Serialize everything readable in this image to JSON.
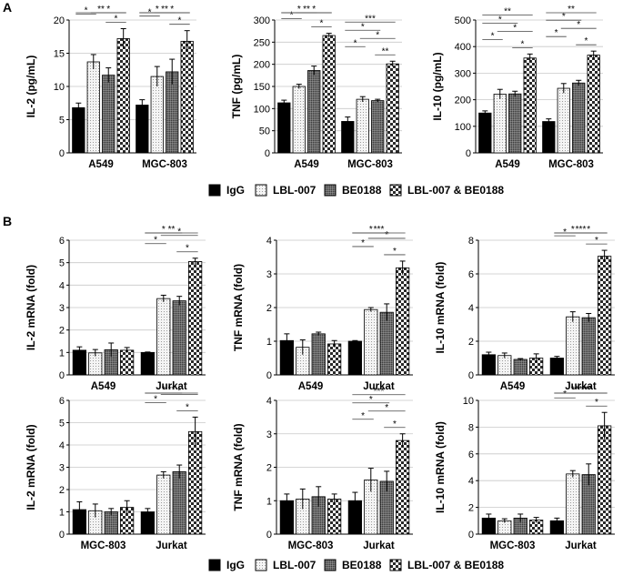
{
  "figure": {
    "panel_a_label": "A",
    "panel_b_label": "B"
  },
  "legend": {
    "items": [
      {
        "label": "IgG",
        "fill": "solid"
      },
      {
        "label": "LBL-007",
        "fill": "dots"
      },
      {
        "label": "BE0188",
        "fill": "dense"
      },
      {
        "label": "LBL-007 & BE0188",
        "fill": "check"
      }
    ]
  },
  "colors": {
    "igg": "#000000",
    "line": "#000000",
    "grid": "#c8c8c8",
    "sig_line": "#444444"
  },
  "chart_data": [
    {
      "id": "a-il2",
      "type": "bar",
      "title": "",
      "ylabel": "IL-2  (pg/mL)",
      "ylim": [
        0,
        20
      ],
      "yticks": [
        0,
        5,
        10,
        15,
        20
      ],
      "categories": [
        "A549",
        "MGC-803"
      ],
      "series": [
        {
          "name": "IgG",
          "values": [
            6.8,
            7.2
          ],
          "errors": [
            0.7,
            0.8
          ]
        },
        {
          "name": "LBL-007",
          "values": [
            13.7,
            11.5
          ],
          "errors": [
            1.1,
            1.5
          ]
        },
        {
          "name": "BE0188",
          "values": [
            11.7,
            12.2
          ],
          "errors": [
            1.1,
            1.9
          ]
        },
        {
          "name": "LBL-007 & BE0188",
          "values": [
            17.2,
            16.8
          ],
          "errors": [
            1.5,
            1.6
          ]
        }
      ],
      "significance": [
        {
          "group": 0,
          "from": 0,
          "to": 3,
          "label": "**"
        },
        {
          "group": 0,
          "from": 1,
          "to": 3,
          "label": "*"
        },
        {
          "group": 0,
          "from": 2,
          "to": 3,
          "label": "*"
        },
        {
          "group": 0,
          "from": 0,
          "to": 1,
          "label": "*"
        },
        {
          "group": 1,
          "from": 0,
          "to": 3,
          "label": "**"
        },
        {
          "group": 1,
          "from": 1,
          "to": 3,
          "label": "*"
        },
        {
          "group": 1,
          "from": 2,
          "to": 3,
          "label": "*"
        },
        {
          "group": 1,
          "from": 0,
          "to": 1,
          "label": "*"
        },
        {
          "group": 1,
          "from": 0,
          "to": 2,
          "label": "*"
        }
      ]
    },
    {
      "id": "a-tnf",
      "type": "bar",
      "title": "",
      "ylabel": "TNF  (pg/mL)",
      "ylim": [
        0,
        300
      ],
      "yticks": [
        0,
        50,
        100,
        150,
        200,
        250,
        300
      ],
      "categories": [
        "A549",
        "MGC-803"
      ],
      "series": [
        {
          "name": "IgG",
          "values": [
            113,
            71
          ],
          "errors": [
            6,
            10
          ]
        },
        {
          "name": "LBL-007",
          "values": [
            150,
            121
          ],
          "errors": [
            5,
            6
          ]
        },
        {
          "name": "BE0188",
          "values": [
            186,
            118
          ],
          "errors": [
            10,
            3
          ]
        },
        {
          "name": "LBL-007 & BE0188",
          "values": [
            265,
            201
          ],
          "errors": [
            5,
            6
          ]
        }
      ],
      "significance": [
        {
          "group": 0,
          "from": 0,
          "to": 3,
          "label": "**"
        },
        {
          "group": 0,
          "from": 1,
          "to": 3,
          "label": "*"
        },
        {
          "group": 0,
          "from": 2,
          "to": 3,
          "label": "*"
        },
        {
          "group": 0,
          "from": 0,
          "to": 2,
          "label": "*"
        },
        {
          "group": 0,
          "from": 0,
          "to": 1,
          "label": "*"
        },
        {
          "group": 1,
          "from": 0,
          "to": 3,
          "label": "***"
        },
        {
          "group": 1,
          "from": 1,
          "to": 3,
          "label": "*"
        },
        {
          "group": 1,
          "from": 2,
          "to": 3,
          "label": "**"
        },
        {
          "group": 1,
          "from": 0,
          "to": 2,
          "label": "*"
        },
        {
          "group": 1,
          "from": 0,
          "to": 1,
          "label": "*"
        }
      ]
    },
    {
      "id": "a-il10",
      "type": "bar",
      "title": "",
      "ylabel": "IL-10  (pg/mL)",
      "ylim": [
        0,
        500
      ],
      "yticks": [
        0,
        100,
        200,
        300,
        400,
        500
      ],
      "categories": [
        "A549",
        "MGC-803"
      ],
      "series": [
        {
          "name": "IgG",
          "values": [
            150,
            118
          ],
          "errors": [
            8,
            10
          ]
        },
        {
          "name": "LBL-007",
          "values": [
            221,
            243
          ],
          "errors": [
            18,
            18
          ]
        },
        {
          "name": "BE0188",
          "values": [
            222,
            263
          ],
          "errors": [
            10,
            10
          ]
        },
        {
          "name": "LBL-007 & BE0188",
          "values": [
            357,
            368
          ],
          "errors": [
            15,
            15
          ]
        }
      ],
      "significance": [
        {
          "group": 0,
          "from": 0,
          "to": 3,
          "label": "**"
        },
        {
          "group": 0,
          "from": 1,
          "to": 3,
          "label": "*"
        },
        {
          "group": 0,
          "from": 2,
          "to": 3,
          "label": "*"
        },
        {
          "group": 0,
          "from": 0,
          "to": 2,
          "label": "*"
        },
        {
          "group": 0,
          "from": 0,
          "to": 1,
          "label": "*"
        },
        {
          "group": 1,
          "from": 0,
          "to": 3,
          "label": "**"
        },
        {
          "group": 1,
          "from": 1,
          "to": 3,
          "label": "*"
        },
        {
          "group": 1,
          "from": 2,
          "to": 3,
          "label": "*"
        },
        {
          "group": 1,
          "from": 0,
          "to": 2,
          "label": "*"
        },
        {
          "group": 1,
          "from": 0,
          "to": 1,
          "label": "*"
        }
      ]
    },
    {
      "id": "b1-il2",
      "type": "bar",
      "title": "",
      "ylabel": "IL-2  mRNA (fold)",
      "ylim": [
        0,
        6
      ],
      "yticks": [
        0,
        1,
        2,
        3,
        4,
        5,
        6
      ],
      "categories": [
        "A549",
        "Jurkat"
      ],
      "series": [
        {
          "name": "IgG",
          "values": [
            1.1,
            1.0
          ],
          "errors": [
            0.15,
            0.02
          ]
        },
        {
          "name": "LBL-007",
          "values": [
            0.98,
            3.4
          ],
          "errors": [
            0.15,
            0.15
          ]
        },
        {
          "name": "BE0188",
          "values": [
            1.12,
            3.3
          ],
          "errors": [
            0.3,
            0.2
          ]
        },
        {
          "name": "LBL-007 & BE0188",
          "values": [
            1.1,
            5.05
          ],
          "errors": [
            0.12,
            0.15
          ]
        }
      ],
      "significance": [
        {
          "group": 1,
          "from": 0,
          "to": 3,
          "label": "**"
        },
        {
          "group": 1,
          "from": 1,
          "to": 3,
          "label": "*"
        },
        {
          "group": 1,
          "from": 2,
          "to": 3,
          "label": "*"
        },
        {
          "group": 1,
          "from": 0,
          "to": 2,
          "label": "*"
        },
        {
          "group": 1,
          "from": 0,
          "to": 1,
          "label": "*"
        }
      ]
    },
    {
      "id": "b1-tnf",
      "type": "bar",
      "title": "",
      "ylabel": "TNF mRNA (fold)",
      "ylim": [
        0,
        4
      ],
      "yticks": [
        0,
        1,
        2,
        3,
        4
      ],
      "categories": [
        "A549",
        "Jurkat"
      ],
      "series": [
        {
          "name": "IgG",
          "values": [
            1.02,
            1.0
          ],
          "errors": [
            0.2,
            0.02
          ]
        },
        {
          "name": "LBL-007",
          "values": [
            0.82,
            1.94
          ],
          "errors": [
            0.22,
            0.06
          ]
        },
        {
          "name": "BE0188",
          "values": [
            1.22,
            1.86
          ],
          "errors": [
            0.05,
            0.25
          ]
        },
        {
          "name": "LBL-007 & BE0188",
          "values": [
            0.92,
            3.18
          ],
          "errors": [
            0.1,
            0.2
          ]
        }
      ],
      "significance": [
        {
          "group": 1,
          "from": 0,
          "to": 3,
          "label": "***"
        },
        {
          "group": 1,
          "from": 1,
          "to": 3,
          "label": "*"
        },
        {
          "group": 1,
          "from": 2,
          "to": 3,
          "label": "*"
        },
        {
          "group": 1,
          "from": 0,
          "to": 2,
          "label": "*"
        },
        {
          "group": 1,
          "from": 0,
          "to": 1,
          "label": "*"
        }
      ]
    },
    {
      "id": "b1-il10",
      "type": "bar",
      "title": "",
      "ylabel": "IL-10  mRNA (fold)",
      "ylim": [
        0,
        8
      ],
      "yticks": [
        0,
        2,
        4,
        6,
        8
      ],
      "categories": [
        "A549",
        "Jurkat"
      ],
      "series": [
        {
          "name": "IgG",
          "values": [
            1.2,
            1.0
          ],
          "errors": [
            0.15,
            0.1
          ]
        },
        {
          "name": "LBL-007",
          "values": [
            1.15,
            3.45
          ],
          "errors": [
            0.15,
            0.3
          ]
        },
        {
          "name": "BE0188",
          "values": [
            0.92,
            3.4
          ],
          "errors": [
            0.05,
            0.25
          ]
        },
        {
          "name": "LBL-007 & BE0188",
          "values": [
            1.0,
            7.05
          ],
          "errors": [
            0.25,
            0.35
          ]
        }
      ],
      "significance": [
        {
          "group": 1,
          "from": 0,
          "to": 3,
          "label": "***"
        },
        {
          "group": 1,
          "from": 1,
          "to": 3,
          "label": "*"
        },
        {
          "group": 1,
          "from": 2,
          "to": 3,
          "label": "*"
        },
        {
          "group": 1,
          "from": 0,
          "to": 2,
          "label": "*"
        },
        {
          "group": 1,
          "from": 0,
          "to": 1,
          "label": "*"
        }
      ]
    },
    {
      "id": "b2-il2",
      "type": "bar",
      "title": "",
      "ylabel": "IL-2  mRNA (fold)",
      "ylim": [
        0,
        6
      ],
      "yticks": [
        0,
        1,
        2,
        3,
        4,
        5,
        6
      ],
      "categories": [
        "MGC-803",
        "Jurkat"
      ],
      "series": [
        {
          "name": "IgG",
          "values": [
            1.1,
            1.0
          ],
          "errors": [
            0.35,
            0.15
          ]
        },
        {
          "name": "LBL-007",
          "values": [
            1.05,
            2.65
          ],
          "errors": [
            0.3,
            0.15
          ]
        },
        {
          "name": "BE0188",
          "values": [
            1.0,
            2.8
          ],
          "errors": [
            0.15,
            0.3
          ]
        },
        {
          "name": "LBL-007 & BE0188",
          "values": [
            1.2,
            4.6
          ],
          "errors": [
            0.3,
            0.65
          ]
        }
      ],
      "significance": [
        {
          "group": 1,
          "from": 0,
          "to": 3,
          "label": "**"
        },
        {
          "group": 1,
          "from": 1,
          "to": 3,
          "label": "*"
        },
        {
          "group": 1,
          "from": 2,
          "to": 3,
          "label": "*"
        },
        {
          "group": 1,
          "from": 0,
          "to": 2,
          "label": "*"
        },
        {
          "group": 1,
          "from": 0,
          "to": 1,
          "label": "*"
        }
      ]
    },
    {
      "id": "b2-tnf",
      "type": "bar",
      "title": "",
      "ylabel": "TNF mRNA (fold)",
      "ylim": [
        0,
        4
      ],
      "yticks": [
        0,
        1,
        2,
        3,
        4
      ],
      "categories": [
        "MGC-803",
        "Jurkat"
      ],
      "series": [
        {
          "name": "IgG",
          "values": [
            1.0,
            1.0
          ],
          "errors": [
            0.2,
            0.25
          ]
        },
        {
          "name": "LBL-007",
          "values": [
            1.05,
            1.62
          ],
          "errors": [
            0.3,
            0.35
          ]
        },
        {
          "name": "BE0188",
          "values": [
            1.12,
            1.58
          ],
          "errors": [
            0.3,
            0.3
          ]
        },
        {
          "name": "LBL-007 & BE0188",
          "values": [
            1.05,
            2.8
          ],
          "errors": [
            0.15,
            0.2
          ]
        }
      ],
      "significance": [
        {
          "group": 1,
          "from": 0,
          "to": 3,
          "label": "***"
        },
        {
          "group": 1,
          "from": 1,
          "to": 3,
          "label": "*"
        },
        {
          "group": 1,
          "from": 2,
          "to": 3,
          "label": "*"
        },
        {
          "group": 1,
          "from": 0,
          "to": 2,
          "label": "*"
        },
        {
          "group": 1,
          "from": 0,
          "to": 1,
          "label": "*"
        }
      ]
    },
    {
      "id": "b2-il10",
      "type": "bar",
      "title": "",
      "ylabel": "IL-10  mRNA (fold)",
      "ylim": [
        0,
        10
      ],
      "yticks": [
        0,
        2,
        4,
        6,
        8,
        10
      ],
      "categories": [
        "MGC-803",
        "Jurkat"
      ],
      "series": [
        {
          "name": "IgG",
          "values": [
            1.2,
            1.0
          ],
          "errors": [
            0.3,
            0.2
          ]
        },
        {
          "name": "LBL-007",
          "values": [
            1.0,
            4.5
          ],
          "errors": [
            0.15,
            0.25
          ]
        },
        {
          "name": "BE0188",
          "values": [
            1.2,
            4.45
          ],
          "errors": [
            0.3,
            0.8
          ]
        },
        {
          "name": "LBL-007 & BE0188",
          "values": [
            1.05,
            8.1
          ],
          "errors": [
            0.2,
            1.0
          ]
        }
      ],
      "significance": [
        {
          "group": 1,
          "from": 0,
          "to": 3,
          "label": "***"
        },
        {
          "group": 1,
          "from": 1,
          "to": 3,
          "label": "**"
        },
        {
          "group": 1,
          "from": 2,
          "to": 3,
          "label": "*"
        },
        {
          "group": 1,
          "from": 0,
          "to": 2,
          "label": "*"
        },
        {
          "group": 1,
          "from": 0,
          "to": 1,
          "label": "*"
        }
      ]
    }
  ]
}
